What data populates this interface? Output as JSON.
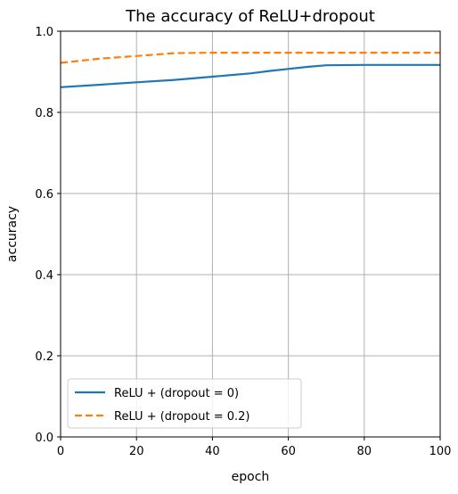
{
  "chart_data": {
    "type": "line",
    "title": "The accuracy of ReLU+dropout",
    "xlabel": "epoch",
    "ylabel": "accuracy",
    "xlim": [
      0,
      100
    ],
    "ylim": [
      0.0,
      1.0
    ],
    "xticks": [
      0,
      20,
      40,
      60,
      80,
      100
    ],
    "yticks": [
      0.0,
      0.2,
      0.4,
      0.6,
      0.8,
      1.0
    ],
    "xtick_labels": [
      "0",
      "20",
      "40",
      "60",
      "80",
      "100"
    ],
    "ytick_labels": [
      "0.0",
      "0.2",
      "0.4",
      "0.6",
      "0.8",
      "1.0"
    ],
    "grid": true,
    "legend_position": "lower-left",
    "series": [
      {
        "name": "ReLU + (dropout = 0)",
        "color": "#1f77b4",
        "dash": "solid",
        "x": [
          0,
          10,
          20,
          30,
          40,
          50,
          55,
          60,
          65,
          70,
          80,
          90,
          100
        ],
        "y": [
          0.862,
          0.868,
          0.874,
          0.88,
          0.888,
          0.896,
          0.902,
          0.907,
          0.912,
          0.916,
          0.917,
          0.917,
          0.917
        ]
      },
      {
        "name": "ReLU + (dropout = 0.2)",
        "color": "#ff7f0e",
        "dash": "dashed",
        "x": [
          0,
          10,
          20,
          30,
          40,
          50,
          60,
          70,
          80,
          90,
          100
        ],
        "y": [
          0.922,
          0.932,
          0.939,
          0.946,
          0.947,
          0.947,
          0.947,
          0.947,
          0.947,
          0.947,
          0.947
        ]
      }
    ]
  }
}
